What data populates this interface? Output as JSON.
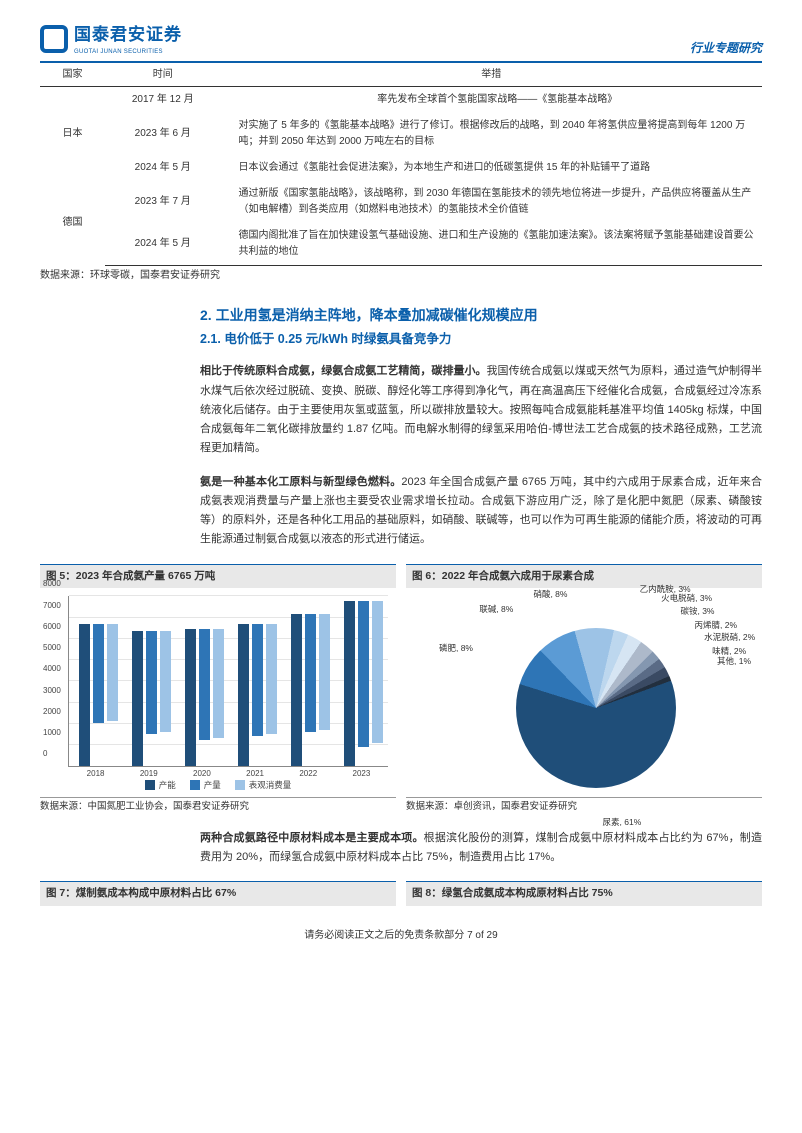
{
  "header": {
    "logo_cn": "国泰君安证券",
    "logo_en": "GUOTAI JUNAN SECURITIES",
    "right": "行业专题研究"
  },
  "policy_table": {
    "columns": [
      "国家",
      "时间",
      "举措"
    ],
    "rows": [
      {
        "country": "",
        "time": "2017 年 12 月",
        "measure": "率先发布全球首个氢能国家战略——《氢能基本战略》"
      },
      {
        "country": "日本",
        "time": "2023 年 6 月",
        "measure": "对实施了 5 年多的《氢能基本战略》进行了修订。根据修改后的战略，到 2040 年将氢供应量将提高到每年 1200 万吨；并到 2050 年达到 2000 万吨左右的目标"
      },
      {
        "country": "",
        "time": "2024 年 5 月",
        "measure": "日本议会通过《氢能社会促进法案》，为本地生产和进口的低碳氢提供 15 年的补贴铺平了道路"
      },
      {
        "country": "",
        "time": "2023 年 7 月",
        "measure": "通过新版《国家氢能战略》，该战略称，到 2030 年德国在氢能技术的领先地位将进一步提升，产品供应将覆盖从生产（如电解槽）到各类应用（如燃料电池技术）的氢能技术全价值链"
      },
      {
        "country": "德国",
        "time": "2024 年 5 月",
        "measure": "德国内阁批准了旨在加快建设氢气基础设施、进口和生产设施的《氢能加速法案》。该法案将赋予氢能基础建设首要公共利益的地位"
      }
    ],
    "source": "数据来源：环球零碳，国泰君安证券研究"
  },
  "h2": "2. 工业用氢是消纳主阵地，降本叠加减碳催化规模应用",
  "h3": "2.1. 电价低于 0.25 元/kWh 时绿氨具备竞争力",
  "para1_lead": "相比于传统原料合成氨，绿氨合成氨工艺精简，碳排量小。",
  "para1": "我国传统合成氨以煤或天然气为原料，通过造气炉制得半水煤气后依次经过脱硫、变换、脱碳、醇烃化等工序得到净化气，再在高温高压下经催化合成氨，合成氨经过冷冻系统液化后储存。由于主要使用灰氢或蓝氢，所以碳排放量较大。按照每吨合成氨能耗基准平均值 1405kg 标煤，中国合成氨每年二氧化碳排放量约 1.87 亿吨。而电解水制得的绿氢采用哈伯-博世法工艺合成氨的技术路径成熟，工艺流程更加精简。",
  "para2_lead": "氨是一种基本化工原料与新型绿色燃料。",
  "para2": "2023 年全国合成氨产量 6765 万吨，其中约六成用于尿素合成，近年来合成氨表观消费量与产量上涨也主要受农业需求增长拉动。合成氨下游应用广泛，除了是化肥中氮肥（尿素、磷酸铵等）的原料外，还是各种化工用品的基础原料，如硝酸、联碱等，也可以作为可再生能源的储能介质，将波动的可再生能源通过制氨合成氨以液态的形式进行储运。",
  "fig5": {
    "title": "图 5：2023 年合成氨产量 6765 万吨",
    "type": "bar",
    "categories": [
      "2018",
      "2019",
      "2020",
      "2021",
      "2022",
      "2023"
    ],
    "series": [
      {
        "name": "产能",
        "color": "#1f4e79",
        "values": [
          6600,
          6300,
          6400,
          6600,
          7100,
          7700
        ]
      },
      {
        "name": "产量",
        "color": "#2e75b6",
        "values": [
          4600,
          4800,
          5200,
          5200,
          5500,
          6800
        ]
      },
      {
        "name": "表观消费量",
        "color": "#9dc3e6",
        "values": [
          4500,
          4700,
          5100,
          5100,
          5400,
          6600
        ]
      }
    ],
    "ylim": [
      0,
      8000
    ],
    "ytick_step": 1000,
    "background_color": "#ffffff",
    "grid_color": "#e5e5e5",
    "source": "数据来源：中国氮肥工业协会，国泰君安证券研究"
  },
  "fig6": {
    "title": "图 6：2022 年合成氨六成用于尿素合成",
    "type": "pie",
    "slices": [
      {
        "label": "尿素",
        "value": 61,
        "color": "#1f4e79"
      },
      {
        "label": "磷肥",
        "value": 8,
        "color": "#2e75b6"
      },
      {
        "label": "联碱",
        "value": 8,
        "color": "#5b9bd5"
      },
      {
        "label": "硝酸",
        "value": 8,
        "color": "#9dc3e6"
      },
      {
        "label": "乙内酰胺",
        "value": 3,
        "color": "#bdd7ee"
      },
      {
        "label": "火电脱硝",
        "value": 3,
        "color": "#d6e5f3"
      },
      {
        "label": "碳铵",
        "value": 3,
        "color": "#adb9ca"
      },
      {
        "label": "丙烯腈",
        "value": 2,
        "color": "#8497b0"
      },
      {
        "label": "水泥脱硝",
        "value": 2,
        "color": "#5a6b86"
      },
      {
        "label": "味精",
        "value": 2,
        "color": "#3a4a63"
      },
      {
        "label": "其他",
        "value": 1,
        "color": "#222f3e"
      }
    ],
    "source": "数据来源：卓创资讯，国泰君安证券研究"
  },
  "para3_lead": "两种合成氨路径中原材料成本是主要成本项。",
  "para3": "根据滨化股份的测算，煤制合成氨中原材料成本占比约为 67%，制造费用为 20%，而绿氢合成氨中原材料成本占比 75%，制造费用占比 17%。",
  "fig7_title": "图 7：煤制氨成本构成中原材料占比 67%",
  "fig8_title": "图 8：绿氢合成氨成本构成原材料占比 75%",
  "footer": "请务必阅读正文之后的免责条款部分 7 of 29"
}
